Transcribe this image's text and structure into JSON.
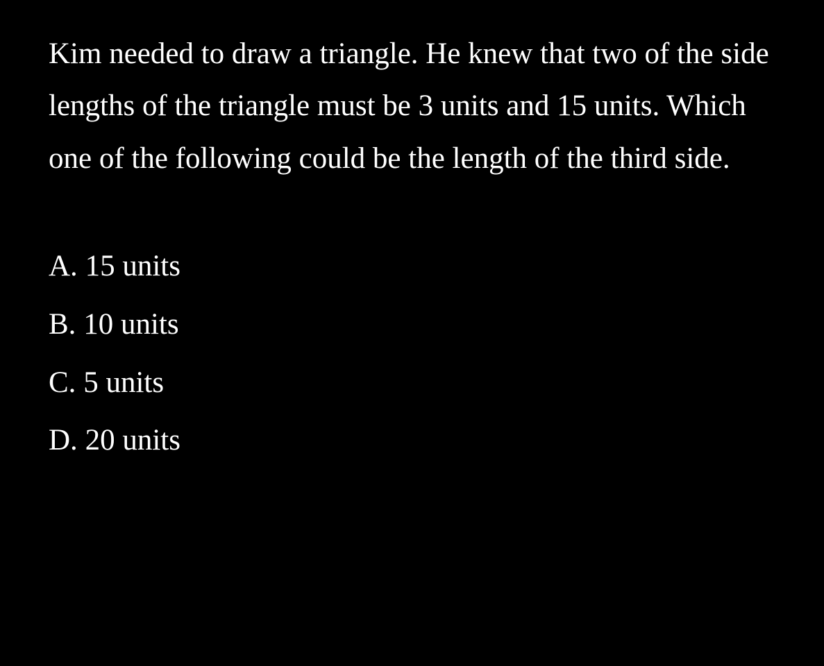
{
  "question": {
    "text": "Kim needed to draw a triangle. He knew that two of the side lengths of the triangle must be 3 units and 15 units. Which one of the following could be the length of the third side.",
    "text_color": "#ffffff",
    "background_color": "#000000",
    "font_size": 43,
    "font_family": "Georgia, serif"
  },
  "options": [
    {
      "label": "A.",
      "value": "15 units"
    },
    {
      "label": "B.",
      "value": "10 units"
    },
    {
      "label": "C.",
      "value": "5 units"
    },
    {
      "label": "D.",
      "value": "20 units"
    }
  ]
}
